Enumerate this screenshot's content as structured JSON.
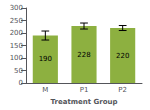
{
  "chart_data": {
    "type": "bar",
    "xlabel": "Treatment Group",
    "categories": [
      "M",
      "P1",
      "P2"
    ],
    "values": [
      190,
      228,
      220
    ],
    "errors": [
      18,
      12,
      10
    ],
    "color": "#8DB040",
    "ylim": [
      0,
      300
    ],
    "yticks": [
      0,
      50,
      100,
      150,
      200,
      250,
      300
    ],
    "grid": false,
    "data_labels": true
  }
}
